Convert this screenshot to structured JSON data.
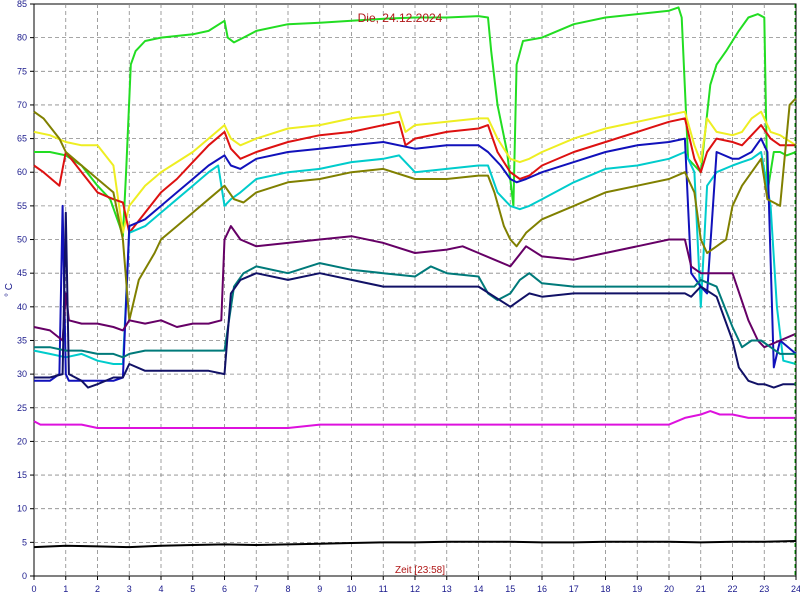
{
  "chart_data": {
    "type": "line",
    "title": "Die, 24.12.2024",
    "xlabel": "Zeit [23:58]",
    "ylabel": "° C",
    "xlim": [
      0,
      24
    ],
    "ylim": [
      0,
      85
    ],
    "x_ticks": [
      0,
      1,
      2,
      3,
      4,
      5,
      6,
      7,
      8,
      9,
      10,
      11,
      12,
      13,
      14,
      15,
      16,
      17,
      18,
      19,
      20,
      21,
      22,
      23,
      24
    ],
    "y_ticks": [
      0,
      5,
      10,
      15,
      20,
      25,
      30,
      35,
      40,
      45,
      50,
      55,
      60,
      65,
      70,
      75,
      80,
      85
    ],
    "grid": true,
    "current_time_marker": 23.97,
    "series": [
      {
        "color": "#22dd22",
        "x": [
          0,
          0.5,
          1,
          1.5,
          2,
          2.4,
          2.7,
          2.8,
          2.9,
          3.05,
          3.2,
          3.5,
          4,
          5,
          5.5,
          6,
          6.1,
          6.3,
          6.6,
          7,
          8,
          9,
          10,
          11,
          12,
          13,
          14,
          14.3,
          14.4,
          14.6,
          14.9,
          15.1,
          15.2,
          15.4,
          16,
          17,
          18,
          19,
          20,
          20.3,
          20.4,
          20.6,
          20.8,
          21,
          21.3,
          21.5,
          21.8,
          22.2,
          22.5,
          22.8,
          23,
          23.1,
          23.3,
          23.5,
          23.7,
          24
        ],
        "y": [
          63,
          63,
          62.5,
          61,
          58,
          56,
          52,
          50.5,
          60,
          76,
          78,
          79.5,
          80,
          80.5,
          81,
          82.5,
          80,
          79.3,
          80,
          81,
          82,
          82.2,
          82.5,
          82.8,
          83,
          83,
          83.2,
          83,
          78,
          70,
          63,
          55,
          76,
          79.5,
          80,
          82,
          83,
          83.5,
          84,
          84.5,
          83,
          62,
          61,
          60,
          73,
          76,
          78,
          81,
          83,
          83.5,
          83,
          57,
          63,
          63,
          62.5,
          63
        ]
      },
      {
        "color": "#eeee22",
        "x": [
          0,
          0.5,
          1,
          1.5,
          2,
          2.5,
          2.8,
          3,
          3.5,
          4,
          4.5,
          5,
          5.5,
          6,
          6.2,
          6.5,
          7,
          8,
          9,
          10,
          11,
          11.5,
          11.7,
          12,
          13,
          14,
          14.3,
          14.6,
          15,
          15.3,
          15.6,
          16,
          17,
          18,
          19,
          20,
          20.5,
          20.8,
          21,
          21.2,
          21.5,
          22,
          22.3,
          22.6,
          22.9,
          23.2,
          23.5,
          24
        ],
        "y": [
          66,
          65.5,
          64.5,
          64,
          64,
          61,
          51,
          55,
          58,
          60,
          61.5,
          63,
          65,
          67,
          65,
          64,
          65,
          66.5,
          67,
          68,
          68.5,
          69,
          66,
          67,
          67.5,
          68,
          68,
          65,
          62,
          61.5,
          62,
          63,
          65,
          66.5,
          67.5,
          68.5,
          69,
          64,
          61.5,
          68,
          66,
          65.5,
          66,
          68,
          69,
          66,
          65.5,
          64
        ]
      },
      {
        "color": "#dd1111",
        "x": [
          0,
          0.3,
          0.8,
          1,
          1.5,
          2,
          2.5,
          2.8,
          3,
          3.5,
          4,
          4.5,
          5,
          5.5,
          6,
          6.2,
          6.5,
          7,
          8,
          9,
          10,
          11,
          11.5,
          11.7,
          12,
          13,
          14,
          14.3,
          14.6,
          15,
          15.3,
          15.6,
          16,
          17,
          18,
          19,
          20,
          20.5,
          20.8,
          21,
          21.2,
          21.5,
          22,
          22.3,
          22.6,
          22.9,
          23.2,
          23.5,
          24
        ],
        "y": [
          61,
          60,
          58,
          63,
          60,
          57,
          56,
          55.5,
          51,
          54,
          57,
          59,
          61.5,
          64,
          66,
          63.5,
          62,
          63,
          64.5,
          65.5,
          66,
          67,
          67.5,
          64,
          65,
          66,
          66.5,
          67,
          63,
          60,
          59,
          59.5,
          61,
          63,
          64.5,
          66,
          67.5,
          68,
          62,
          60,
          63,
          65,
          64.5,
          64,
          65.5,
          67,
          65,
          64,
          64
        ]
      },
      {
        "color": "#00cccc",
        "x": [
          0,
          0.5,
          1,
          1.5,
          2,
          2.5,
          2.8,
          3,
          3.5,
          4,
          4.5,
          5,
          5.5,
          5.8,
          6,
          6.2,
          6.5,
          7,
          8,
          9,
          10,
          11,
          11.5,
          12,
          13,
          14,
          14.3,
          14.6,
          15,
          15.3,
          15.6,
          16,
          17,
          18,
          19,
          20,
          20.5,
          20.8,
          21,
          21.2,
          21.5,
          22,
          22.3,
          22.6,
          22.9,
          23.2,
          23.4,
          23.6,
          24
        ],
        "y": [
          33.5,
          33,
          32.5,
          33,
          32,
          31.5,
          31.5,
          51,
          52,
          54,
          56,
          58,
          60,
          61,
          55,
          56,
          57,
          59,
          60,
          60.5,
          61.5,
          62,
          62.5,
          60,
          60.5,
          61,
          61,
          57,
          55,
          54.5,
          55,
          56,
          58.5,
          60.5,
          61,
          62,
          63,
          60,
          40,
          58,
          60,
          61,
          61.5,
          62,
          63,
          55,
          40,
          32,
          31.5
        ]
      },
      {
        "color": "#1111bb",
        "x": [
          0,
          0.5,
          0.8,
          0.9,
          1,
          1.1,
          1.5,
          2,
          2.5,
          2.8,
          3,
          3.5,
          4,
          4.5,
          5,
          5.5,
          6,
          6.2,
          6.5,
          7,
          8,
          9,
          10,
          11,
          12,
          13,
          14,
          14.3,
          14.5,
          14.7,
          15,
          15.2,
          15.5,
          16,
          17,
          18,
          19,
          20,
          20.5,
          20.7,
          21,
          21.2,
          21.5,
          22,
          22.2,
          22.6,
          22.9,
          23.1,
          23.3,
          23.5,
          24
        ],
        "y": [
          29,
          29,
          30,
          55,
          30,
          29,
          29,
          29,
          29,
          29.5,
          52,
          53,
          55,
          57,
          59,
          61,
          62.5,
          61,
          60.5,
          62,
          63,
          63.5,
          64,
          64.5,
          63.5,
          64,
          64,
          63,
          62,
          61,
          59,
          58.5,
          59,
          60,
          61.5,
          63,
          64,
          64.5,
          65,
          45,
          43,
          42,
          63,
          62,
          62,
          63,
          65,
          63,
          31,
          35,
          33
        ]
      },
      {
        "color": "#808000",
        "x": [
          0,
          0.3,
          0.8,
          1,
          1.5,
          2,
          2.5,
          2.8,
          3,
          3.3,
          3.8,
          4,
          4.5,
          5,
          5.5,
          6,
          6.3,
          6.6,
          7,
          8,
          9,
          10,
          11,
          12,
          13,
          14,
          14.3,
          14.5,
          14.8,
          15,
          15.2,
          15.5,
          16,
          17,
          18,
          19,
          20,
          20.5,
          20.8,
          21,
          21.2,
          21.5,
          21.8,
          22,
          22.3,
          22.6,
          22.9,
          23.1,
          23.5,
          23.8,
          24
        ],
        "y": [
          69,
          68,
          65,
          63,
          61,
          59,
          57,
          50,
          38,
          44,
          48,
          50,
          52,
          54,
          56,
          58,
          56,
          55.5,
          57,
          58.5,
          59,
          60,
          60.5,
          59,
          59,
          59.5,
          59.5,
          57,
          52,
          50,
          49,
          51,
          53,
          55,
          57,
          58,
          59,
          60,
          57,
          50,
          48,
          49,
          50,
          55,
          58,
          60,
          62,
          56,
          55,
          70,
          71
        ]
      },
      {
        "color": "#660066",
        "x": [
          0,
          0.5,
          0.9,
          1,
          1.1,
          1.5,
          2,
          2.5,
          2.8,
          3,
          3.5,
          4,
          4.5,
          5,
          5.5,
          5.9,
          6,
          6.2,
          6.5,
          7,
          8,
          9,
          10,
          11,
          12,
          13,
          13.5,
          14,
          14.5,
          15,
          15.5,
          16,
          17,
          18,
          19,
          20,
          20.5,
          20.7,
          21,
          21.5,
          22,
          22.5,
          22.8,
          23,
          23.5,
          24
        ],
        "y": [
          37,
          36.5,
          35,
          42,
          38,
          37.5,
          37.5,
          37,
          36.5,
          38,
          37.5,
          38,
          37,
          37.5,
          37.5,
          38,
          50,
          52,
          50,
          49,
          49.5,
          50,
          50.5,
          49.5,
          48,
          48.5,
          49,
          48,
          47,
          46,
          49,
          47.5,
          47,
          48,
          49,
          50,
          50,
          46,
          45,
          45,
          45,
          38,
          35,
          34,
          35,
          36
        ]
      },
      {
        "color": "#007a7a",
        "x": [
          0,
          0.5,
          1,
          1.5,
          2,
          2.5,
          2.8,
          3,
          3.5,
          4,
          4.5,
          5,
          5.5,
          6,
          6.3,
          6.6,
          7,
          8,
          9,
          10,
          11,
          12,
          12.5,
          13,
          14,
          14.3,
          14.6,
          15,
          15.3,
          15.6,
          16,
          17,
          18,
          19,
          20,
          20.5,
          20.8,
          21,
          21.5,
          22,
          22.3,
          22.6,
          22.9,
          23.2,
          23.5,
          24
        ],
        "y": [
          34,
          34,
          33.5,
          33.5,
          33,
          33,
          32.5,
          33,
          33.5,
          33.5,
          33.5,
          33.5,
          33.5,
          33.5,
          43,
          45,
          46,
          45,
          46.5,
          45.5,
          45,
          44.5,
          46,
          45,
          44.5,
          42,
          41,
          42,
          44,
          45,
          43.5,
          43,
          43,
          43,
          43,
          43,
          43,
          44,
          43,
          37,
          34,
          35,
          35,
          34,
          33,
          33
        ]
      },
      {
        "color": "#111166",
        "x": [
          0,
          0.5,
          0.9,
          1,
          1.1,
          1.5,
          1.7,
          2,
          2.5,
          2.8,
          3,
          3.5,
          4,
          4.5,
          5,
          5.5,
          6,
          6.2,
          6.5,
          7,
          8,
          9,
          10,
          11,
          12,
          13,
          14,
          14.5,
          15,
          15.3,
          15.6,
          16,
          17,
          18,
          19,
          20,
          20.5,
          20.7,
          21,
          21.5,
          22,
          22.2,
          22.5,
          22.8,
          23,
          23.3,
          23.6,
          24
        ],
        "y": [
          29.5,
          29.5,
          30,
          54,
          30,
          29,
          28,
          28.5,
          29.5,
          29.5,
          31.5,
          30.5,
          30.5,
          30.5,
          30.5,
          30.5,
          30,
          42,
          44,
          45,
          44,
          45,
          44,
          43,
          43,
          43,
          43,
          41.5,
          40,
          41,
          42,
          41.5,
          42,
          42,
          42,
          42,
          42,
          41.5,
          43,
          41.5,
          35,
          31,
          29,
          28.5,
          28.5,
          28,
          28.5,
          28.5
        ]
      },
      {
        "color": "#dd11dd",
        "x": [
          0,
          0.2,
          1,
          1.5,
          2,
          3,
          4,
          5,
          6,
          7,
          8,
          9,
          10,
          11,
          12,
          12.5,
          13,
          14,
          15,
          16,
          17,
          18,
          19,
          20,
          20.5,
          21,
          21.3,
          21.6,
          22,
          22.5,
          23,
          23.5,
          24
        ],
        "y": [
          23,
          22.5,
          22.5,
          22.5,
          22,
          22,
          22,
          22,
          22,
          22,
          22,
          22.5,
          22.5,
          22.5,
          22.5,
          22.5,
          22.5,
          22.5,
          22.5,
          22.5,
          22.5,
          22.5,
          22.5,
          22.5,
          23.5,
          24,
          24.5,
          24,
          24,
          23.5,
          23.5,
          23.5,
          23.5
        ]
      },
      {
        "color": "#000000",
        "x": [
          0,
          1,
          2,
          3,
          4,
          5,
          6,
          7,
          8,
          9,
          10,
          11,
          12,
          13,
          14,
          15,
          16,
          17,
          18,
          19,
          20,
          21,
          22,
          23,
          24
        ],
        "y": [
          4.3,
          4.5,
          4.4,
          4.3,
          4.5,
          4.6,
          4.7,
          4.6,
          4.7,
          4.8,
          4.9,
          5.0,
          5.0,
          5.1,
          5.1,
          5.1,
          5.0,
          5.0,
          5.1,
          5.1,
          5.1,
          5.0,
          5.1,
          5.1,
          5.2
        ]
      }
    ]
  }
}
